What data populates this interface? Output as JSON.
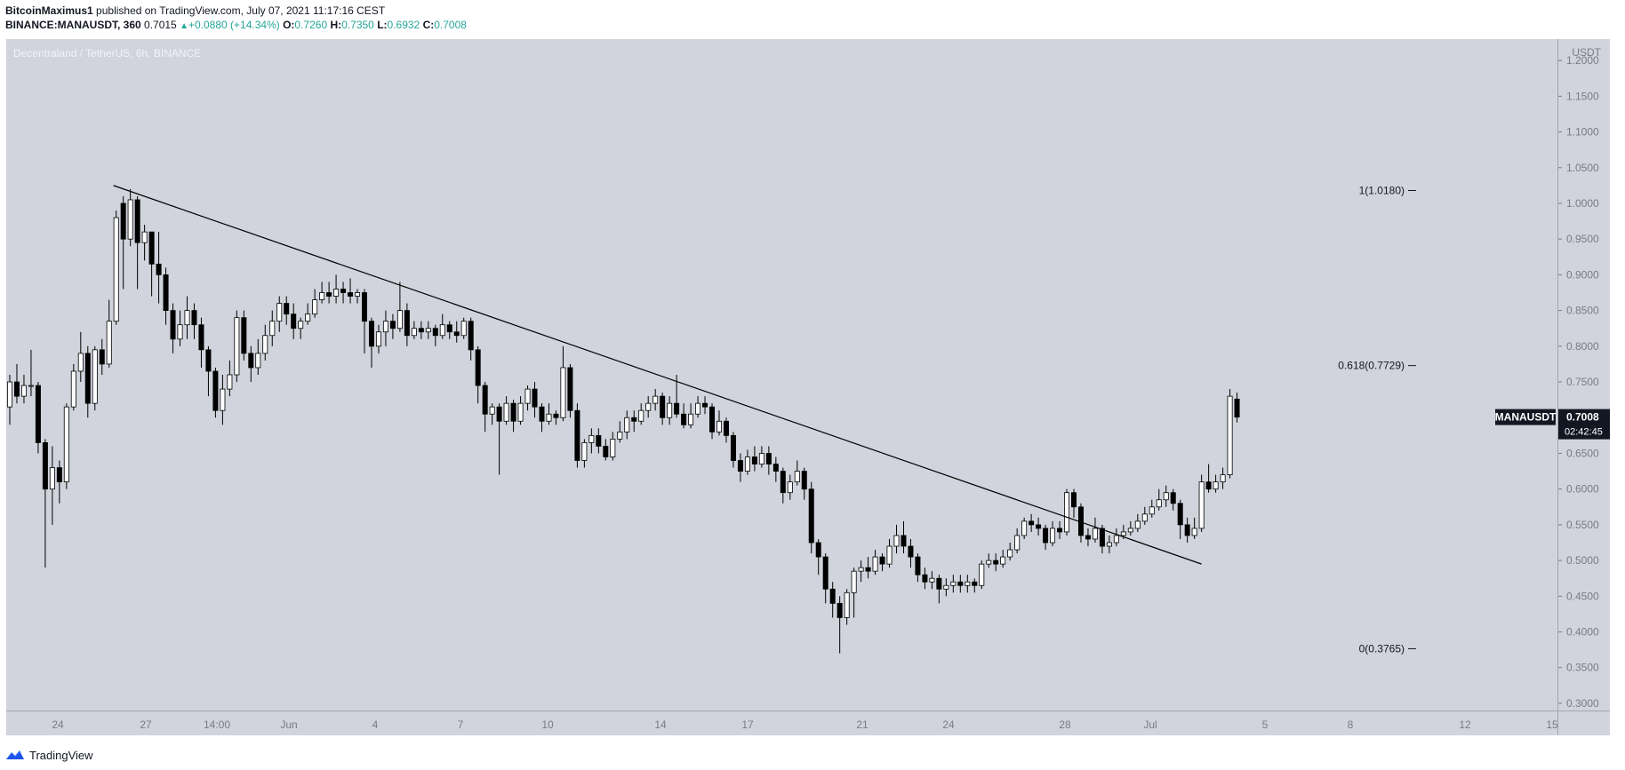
{
  "header": {
    "author": "BitcoinMaximus1",
    "published_text": "published on TradingView.com, July 07, 2021 11:17:16 CEST",
    "symbol": "BINANCE:MANAUSDT, 360",
    "last": "0.7015",
    "change": "+0.0880 (+14.34%)",
    "ohlc": [
      {
        "label": "O:",
        "value": "0.7260"
      },
      {
        "label": "H:",
        "value": "0.7350"
      },
      {
        "label": "L:",
        "value": "0.6932"
      },
      {
        "label": "C:",
        "value": "0.7008"
      }
    ]
  },
  "footer": {
    "brand": "TradingView"
  },
  "colors": {
    "plot_background": "#d1d4dc",
    "axis_background": "#d1d4dc",
    "candle_up_fill": "#ffffff",
    "candle_down_fill": "#000000",
    "candle_outline": "#000000",
    "price_tag_bg": "#131722",
    "change_color": "#26a69a"
  },
  "chart_data": {
    "type": "candlestick",
    "title": "Decentraland / TetherUS, 6h, BINANCE",
    "currency_label": "USDT",
    "ylim": [
      0.29,
      1.23
    ],
    "y_ticks": [
      "1.2000",
      "1.1500",
      "1.1000",
      "1.0500",
      "1.0000",
      "0.9500",
      "0.9000",
      "0.8500",
      "0.8000",
      "0.7500",
      "0.7000",
      "0.6500",
      "0.6000",
      "0.5500",
      "0.5000",
      "0.4500",
      "0.4000",
      "0.3500",
      "0.3000"
    ],
    "x_tick_labels": [
      "24",
      "27",
      "14:00",
      "Jun",
      "4",
      "7",
      "10",
      "14",
      "17",
      "21",
      "24",
      "28",
      "Jul",
      "5",
      "8",
      "12",
      "15"
    ],
    "grid": false,
    "last_price_tag": {
      "symbol": "MANAUSDT",
      "price": "0.7008",
      "countdown": "02:42:45",
      "value": 0.7008
    },
    "fib_levels": [
      {
        "label": "1(1.0180)",
        "value": 1.018
      },
      {
        "label": "0.618(0.7729)",
        "value": 0.7729
      },
      {
        "label": "0(0.3765)",
        "value": 0.3765
      }
    ],
    "trendline": {
      "start_bar": 15,
      "start_value": 1.025,
      "end_bar": 168,
      "end_value": 0.495
    },
    "candles": [
      [
        0.715,
        0.75,
        0.76,
        0.69
      ],
      [
        0.75,
        0.73,
        0.775,
        0.72
      ],
      [
        0.73,
        0.745,
        0.76,
        0.72
      ],
      [
        0.745,
        0.745,
        0.795,
        0.73
      ],
      [
        0.745,
        0.665,
        0.75,
        0.65
      ],
      [
        0.665,
        0.6,
        0.67,
        0.49
      ],
      [
        0.6,
        0.63,
        0.66,
        0.55
      ],
      [
        0.63,
        0.61,
        0.64,
        0.58
      ],
      [
        0.61,
        0.715,
        0.72,
        0.6
      ],
      [
        0.715,
        0.765,
        0.775,
        0.71
      ],
      [
        0.765,
        0.79,
        0.82,
        0.75
      ],
      [
        0.79,
        0.72,
        0.8,
        0.7
      ],
      [
        0.72,
        0.795,
        0.8,
        0.71
      ],
      [
        0.795,
        0.775,
        0.81,
        0.76
      ],
      [
        0.775,
        0.835,
        0.865,
        0.77
      ],
      [
        0.835,
        0.98,
        0.99,
        0.83
      ],
      [
        1.0,
        0.95,
        1.01,
        0.88
      ],
      [
        0.95,
        1.005,
        1.02,
        0.94
      ],
      [
        1.005,
        0.945,
        1.01,
        0.88
      ],
      [
        0.945,
        0.96,
        0.97,
        0.92
      ],
      [
        0.96,
        0.915,
        0.95,
        0.87
      ],
      [
        0.915,
        0.9,
        0.96,
        0.86
      ],
      [
        0.9,
        0.85,
        0.91,
        0.83
      ],
      [
        0.85,
        0.81,
        0.86,
        0.79
      ],
      [
        0.81,
        0.83,
        0.85,
        0.8
      ],
      [
        0.83,
        0.85,
        0.87,
        0.81
      ],
      [
        0.85,
        0.83,
        0.86,
        0.81
      ],
      [
        0.83,
        0.795,
        0.84,
        0.77
      ],
      [
        0.795,
        0.765,
        0.8,
        0.73
      ],
      [
        0.765,
        0.71,
        0.77,
        0.7
      ],
      [
        0.71,
        0.74,
        0.76,
        0.69
      ],
      [
        0.74,
        0.76,
        0.78,
        0.73
      ],
      [
        0.76,
        0.84,
        0.85,
        0.75
      ],
      [
        0.84,
        0.79,
        0.85,
        0.78
      ],
      [
        0.79,
        0.77,
        0.8,
        0.75
      ],
      [
        0.77,
        0.79,
        0.81,
        0.76
      ],
      [
        0.79,
        0.815,
        0.83,
        0.78
      ],
      [
        0.815,
        0.835,
        0.85,
        0.8
      ],
      [
        0.835,
        0.86,
        0.87,
        0.82
      ],
      [
        0.86,
        0.845,
        0.87,
        0.83
      ],
      [
        0.845,
        0.825,
        0.86,
        0.81
      ],
      [
        0.825,
        0.835,
        0.84,
        0.81
      ],
      [
        0.835,
        0.845,
        0.86,
        0.83
      ],
      [
        0.845,
        0.865,
        0.88,
        0.84
      ],
      [
        0.865,
        0.875,
        0.89,
        0.86
      ],
      [
        0.875,
        0.87,
        0.89,
        0.86
      ],
      [
        0.87,
        0.88,
        0.9,
        0.86
      ],
      [
        0.88,
        0.875,
        0.89,
        0.86
      ],
      [
        0.875,
        0.87,
        0.895,
        0.86
      ],
      [
        0.87,
        0.875,
        0.88,
        0.86
      ],
      [
        0.875,
        0.835,
        0.88,
        0.79
      ],
      [
        0.835,
        0.8,
        0.84,
        0.77
      ],
      [
        0.8,
        0.82,
        0.83,
        0.79
      ],
      [
        0.82,
        0.835,
        0.85,
        0.8
      ],
      [
        0.835,
        0.825,
        0.845,
        0.81
      ],
      [
        0.825,
        0.85,
        0.89,
        0.82
      ],
      [
        0.85,
        0.815,
        0.86,
        0.8
      ],
      [
        0.815,
        0.825,
        0.835,
        0.81
      ],
      [
        0.825,
        0.82,
        0.835,
        0.81
      ],
      [
        0.82,
        0.825,
        0.835,
        0.81
      ],
      [
        0.825,
        0.815,
        0.83,
        0.8
      ],
      [
        0.815,
        0.83,
        0.845,
        0.81
      ],
      [
        0.83,
        0.82,
        0.835,
        0.81
      ],
      [
        0.82,
        0.815,
        0.835,
        0.805
      ],
      [
        0.815,
        0.835,
        0.84,
        0.81
      ],
      [
        0.835,
        0.795,
        0.84,
        0.78
      ],
      [
        0.795,
        0.745,
        0.8,
        0.72
      ],
      [
        0.745,
        0.705,
        0.75,
        0.68
      ],
      [
        0.705,
        0.715,
        0.72,
        0.69
      ],
      [
        0.715,
        0.695,
        0.72,
        0.62
      ],
      [
        0.695,
        0.72,
        0.73,
        0.69
      ],
      [
        0.72,
        0.695,
        0.725,
        0.68
      ],
      [
        0.695,
        0.72,
        0.73,
        0.69
      ],
      [
        0.72,
        0.74,
        0.745,
        0.71
      ],
      [
        0.74,
        0.715,
        0.75,
        0.7
      ],
      [
        0.715,
        0.695,
        0.72,
        0.68
      ],
      [
        0.695,
        0.705,
        0.72,
        0.69
      ],
      [
        0.705,
        0.7,
        0.71,
        0.69
      ],
      [
        0.7,
        0.77,
        0.8,
        0.695
      ],
      [
        0.77,
        0.71,
        0.775,
        0.7
      ],
      [
        0.71,
        0.64,
        0.72,
        0.63
      ],
      [
        0.64,
        0.665,
        0.67,
        0.63
      ],
      [
        0.665,
        0.675,
        0.685,
        0.65
      ],
      [
        0.675,
        0.66,
        0.685,
        0.65
      ],
      [
        0.66,
        0.645,
        0.67,
        0.64
      ],
      [
        0.645,
        0.67,
        0.68,
        0.64
      ],
      [
        0.67,
        0.68,
        0.695,
        0.665
      ],
      [
        0.68,
        0.7,
        0.71,
        0.67
      ],
      [
        0.7,
        0.695,
        0.71,
        0.68
      ],
      [
        0.695,
        0.71,
        0.72,
        0.69
      ],
      [
        0.71,
        0.72,
        0.73,
        0.7
      ],
      [
        0.72,
        0.73,
        0.74,
        0.71
      ],
      [
        0.73,
        0.7,
        0.735,
        0.69
      ],
      [
        0.7,
        0.72,
        0.73,
        0.69
      ],
      [
        0.72,
        0.705,
        0.76,
        0.7
      ],
      [
        0.705,
        0.69,
        0.72,
        0.685
      ],
      [
        0.69,
        0.705,
        0.72,
        0.685
      ],
      [
        0.705,
        0.72,
        0.73,
        0.7
      ],
      [
        0.72,
        0.715,
        0.73,
        0.705
      ],
      [
        0.715,
        0.68,
        0.72,
        0.67
      ],
      [
        0.68,
        0.695,
        0.71,
        0.675
      ],
      [
        0.695,
        0.675,
        0.7,
        0.665
      ],
      [
        0.675,
        0.64,
        0.68,
        0.63
      ],
      [
        0.64,
        0.625,
        0.65,
        0.61
      ],
      [
        0.625,
        0.645,
        0.655,
        0.62
      ],
      [
        0.645,
        0.635,
        0.66,
        0.625
      ],
      [
        0.635,
        0.65,
        0.66,
        0.63
      ],
      [
        0.65,
        0.635,
        0.66,
        0.62
      ],
      [
        0.635,
        0.625,
        0.645,
        0.61
      ],
      [
        0.625,
        0.595,
        0.63,
        0.58
      ],
      [
        0.595,
        0.61,
        0.62,
        0.585
      ],
      [
        0.61,
        0.625,
        0.64,
        0.605
      ],
      [
        0.625,
        0.6,
        0.63,
        0.585
      ],
      [
        0.6,
        0.525,
        0.61,
        0.51
      ],
      [
        0.525,
        0.505,
        0.53,
        0.48
      ],
      [
        0.505,
        0.46,
        0.51,
        0.44
      ],
      [
        0.46,
        0.44,
        0.47,
        0.42
      ],
      [
        0.44,
        0.42,
        0.45,
        0.37
      ],
      [
        0.42,
        0.455,
        0.46,
        0.41
      ],
      [
        0.455,
        0.485,
        0.49,
        0.42
      ],
      [
        0.485,
        0.49,
        0.5,
        0.47
      ],
      [
        0.49,
        0.485,
        0.505,
        0.475
      ],
      [
        0.485,
        0.505,
        0.515,
        0.48
      ],
      [
        0.505,
        0.495,
        0.51,
        0.485
      ],
      [
        0.495,
        0.52,
        0.53,
        0.49
      ],
      [
        0.52,
        0.535,
        0.55,
        0.51
      ],
      [
        0.535,
        0.52,
        0.555,
        0.51
      ],
      [
        0.52,
        0.505,
        0.53,
        0.49
      ],
      [
        0.505,
        0.48,
        0.51,
        0.47
      ],
      [
        0.48,
        0.47,
        0.49,
        0.46
      ],
      [
        0.47,
        0.475,
        0.485,
        0.46
      ],
      [
        0.475,
        0.46,
        0.48,
        0.44
      ],
      [
        0.46,
        0.465,
        0.475,
        0.45
      ],
      [
        0.465,
        0.47,
        0.48,
        0.455
      ],
      [
        0.47,
        0.465,
        0.48,
        0.455
      ],
      [
        0.465,
        0.47,
        0.48,
        0.455
      ],
      [
        0.47,
        0.465,
        0.475,
        0.455
      ],
      [
        0.465,
        0.495,
        0.5,
        0.46
      ],
      [
        0.495,
        0.5,
        0.51,
        0.49
      ],
      [
        0.5,
        0.495,
        0.51,
        0.485
      ],
      [
        0.495,
        0.505,
        0.515,
        0.49
      ],
      [
        0.505,
        0.515,
        0.525,
        0.5
      ],
      [
        0.515,
        0.535,
        0.545,
        0.51
      ],
      [
        0.535,
        0.555,
        0.56,
        0.53
      ],
      [
        0.555,
        0.55,
        0.565,
        0.54
      ],
      [
        0.55,
        0.545,
        0.56,
        0.535
      ],
      [
        0.545,
        0.525,
        0.55,
        0.515
      ],
      [
        0.525,
        0.545,
        0.555,
        0.52
      ],
      [
        0.545,
        0.54,
        0.555,
        0.53
      ],
      [
        0.54,
        0.595,
        0.6,
        0.535
      ],
      [
        0.595,
        0.575,
        0.6,
        0.56
      ],
      [
        0.575,
        0.535,
        0.58,
        0.525
      ],
      [
        0.535,
        0.53,
        0.545,
        0.52
      ],
      [
        0.53,
        0.545,
        0.56,
        0.525
      ],
      [
        0.545,
        0.52,
        0.55,
        0.51
      ],
      [
        0.52,
        0.525,
        0.535,
        0.51
      ],
      [
        0.525,
        0.535,
        0.545,
        0.52
      ],
      [
        0.535,
        0.54,
        0.55,
        0.53
      ],
      [
        0.54,
        0.545,
        0.555,
        0.535
      ],
      [
        0.545,
        0.555,
        0.565,
        0.54
      ],
      [
        0.555,
        0.565,
        0.575,
        0.55
      ],
      [
        0.565,
        0.575,
        0.585,
        0.56
      ],
      [
        0.575,
        0.585,
        0.6,
        0.57
      ],
      [
        0.585,
        0.595,
        0.605,
        0.575
      ],
      [
        0.595,
        0.58,
        0.6,
        0.57
      ],
      [
        0.58,
        0.55,
        0.585,
        0.53
      ],
      [
        0.55,
        0.535,
        0.56,
        0.525
      ],
      [
        0.535,
        0.545,
        0.56,
        0.53
      ],
      [
        0.545,
        0.61,
        0.62,
        0.54
      ],
      [
        0.61,
        0.6,
        0.635,
        0.595
      ],
      [
        0.6,
        0.61,
        0.62,
        0.595
      ],
      [
        0.61,
        0.62,
        0.63,
        0.6
      ],
      [
        0.62,
        0.73,
        0.74,
        0.615
      ],
      [
        0.726,
        0.7008,
        0.735,
        0.6932
      ]
    ]
  }
}
